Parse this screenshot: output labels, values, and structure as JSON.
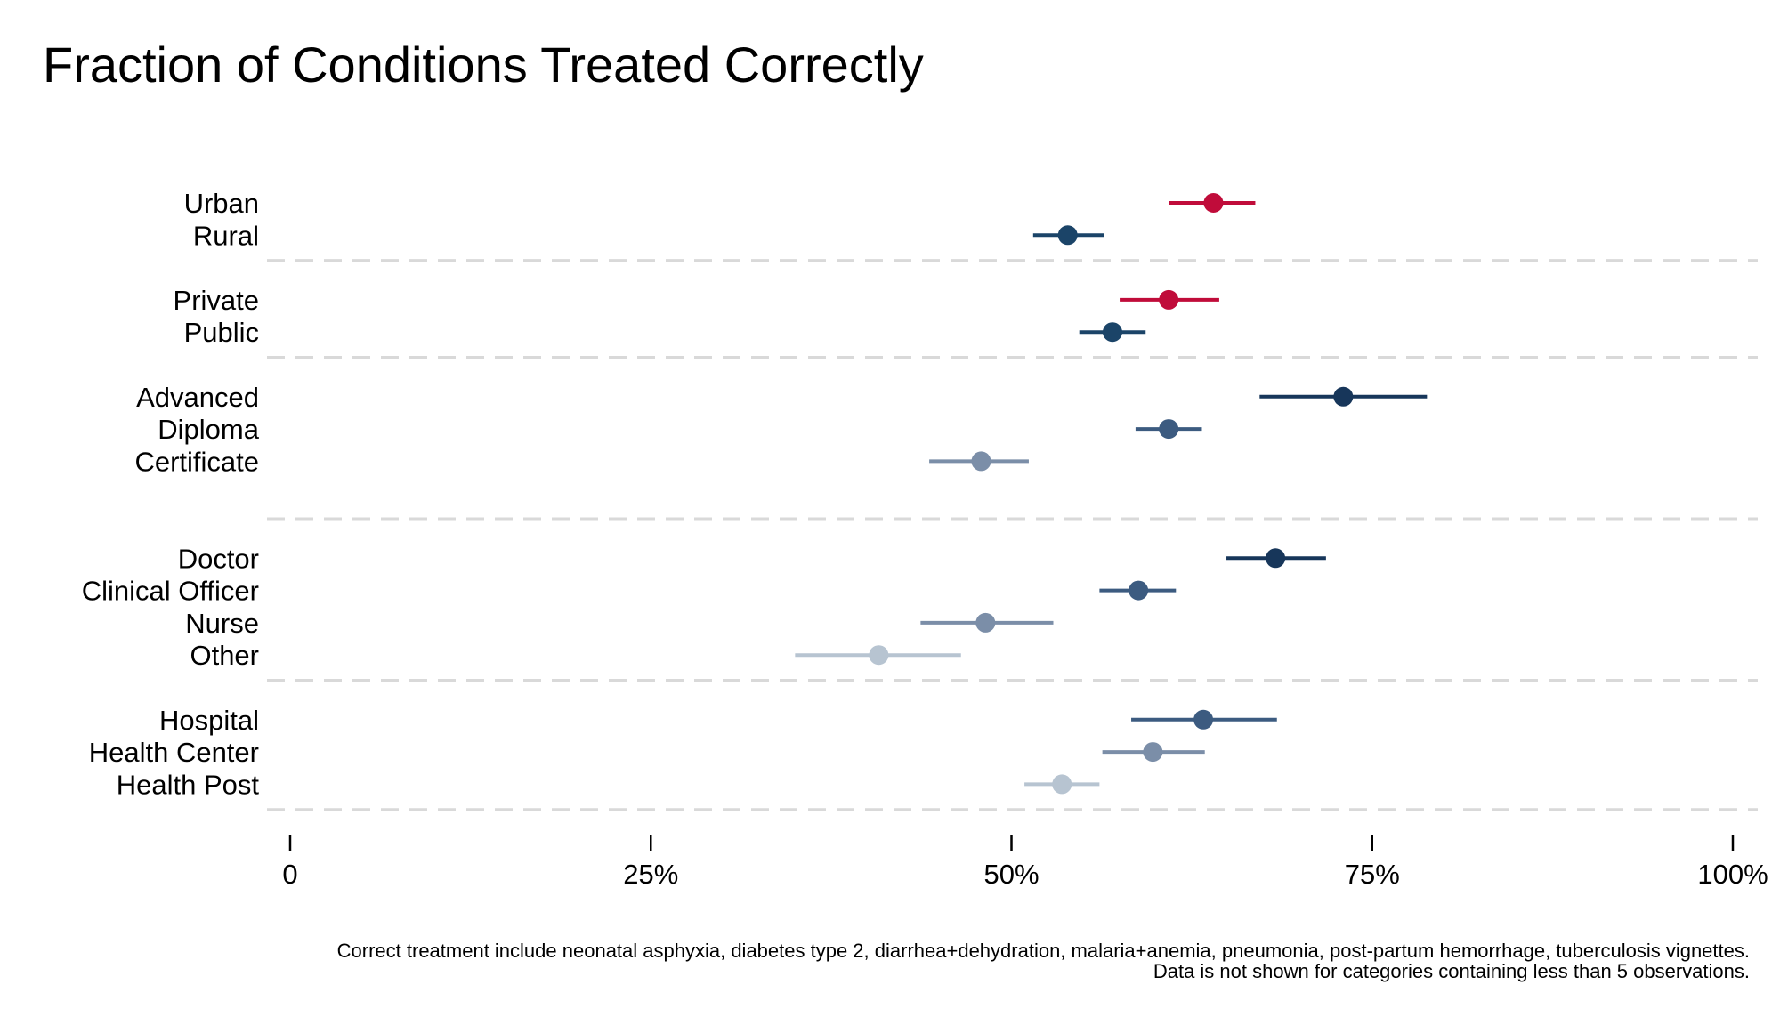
{
  "chart_data": {
    "type": "dot-interval",
    "title": "Fraction of Conditions Treated Correctly",
    "xlim": [
      0,
      100
    ],
    "x_ticks": [
      {
        "value": 0,
        "label": "0"
      },
      {
        "value": 25,
        "label": "25%"
      },
      {
        "value": 50,
        "label": "50%"
      },
      {
        "value": 75,
        "label": "75%"
      },
      {
        "value": 100,
        "label": "100%"
      }
    ],
    "groups": [
      {
        "rows": [
          {
            "label": "Urban",
            "value": 64.0,
            "low": 60.9,
            "high": 66.9,
            "color": "#c00c3a"
          },
          {
            "label": "Rural",
            "value": 53.9,
            "low": 51.5,
            "high": 56.4,
            "color": "#1b4468"
          }
        ]
      },
      {
        "rows": [
          {
            "label": "Private",
            "value": 60.9,
            "low": 57.5,
            "high": 64.4,
            "color": "#c00c3a"
          },
          {
            "label": "Public",
            "value": 57.0,
            "low": 54.7,
            "high": 59.3,
            "color": "#1b4468"
          }
        ]
      },
      {
        "rows": [
          {
            "label": "Advanced",
            "value": 73.0,
            "low": 67.2,
            "high": 78.8,
            "color": "#17365a"
          },
          {
            "label": "Diploma",
            "value": 60.9,
            "low": 58.6,
            "high": 63.2,
            "color": "#3c5b80"
          },
          {
            "label": "Certificate",
            "value": 47.9,
            "low": 44.3,
            "high": 51.2,
            "color": "#7b8ea8"
          }
        ]
      },
      {
        "rows": [
          {
            "label": "Doctor",
            "value": 68.3,
            "low": 64.9,
            "high": 71.8,
            "color": "#17365a"
          },
          {
            "label": "Clinical Officer",
            "value": 58.8,
            "low": 56.1,
            "high": 61.4,
            "color": "#3c5b80"
          },
          {
            "label": "Nurse",
            "value": 48.2,
            "low": 43.7,
            "high": 52.9,
            "color": "#7b8ea8"
          },
          {
            "label": "Other",
            "value": 40.8,
            "low": 35.0,
            "high": 46.5,
            "color": "#b7c4d1"
          }
        ]
      },
      {
        "rows": [
          {
            "label": "Hospital",
            "value": 63.3,
            "low": 58.3,
            "high": 68.4,
            "color": "#3c5b80"
          },
          {
            "label": "Health Center",
            "value": 59.8,
            "low": 56.3,
            "high": 63.4,
            "color": "#7b8ea8"
          },
          {
            "label": "Health Post",
            "value": 53.5,
            "low": 50.9,
            "high": 56.1,
            "color": "#b7c4d1"
          }
        ]
      }
    ],
    "notes": [
      "Correct treatment include neonatal asphyxia, diabetes type 2, diarrhea+dehydration, malaria+anemia, pneumonia, post-partum hemorrhage, tuberculosis vignettes.",
      "Data is not shown for categories containing less than 5 observations."
    ],
    "grid": false,
    "legend": "none"
  }
}
